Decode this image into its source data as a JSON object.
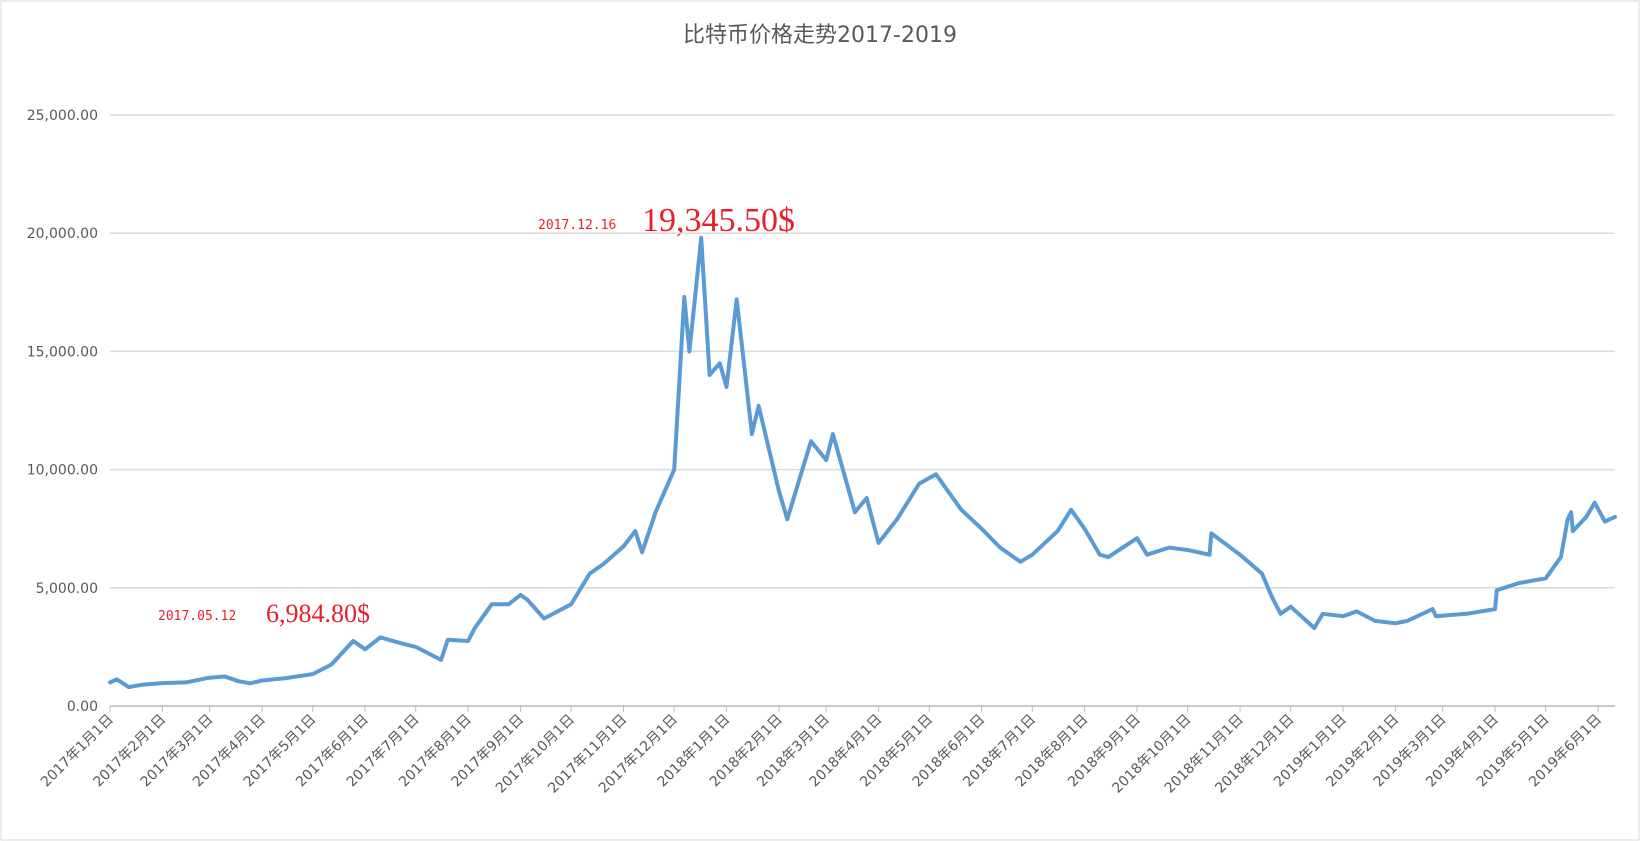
{
  "chart_data": {
    "type": "line",
    "title": "比特币价格走势2017-2019",
    "x": [
      "2017-01-01",
      "2017-01-05",
      "2017-01-12",
      "2017-01-20",
      "2017-02-01",
      "2017-02-15",
      "2017-02-28",
      "2017-03-10",
      "2017-03-18",
      "2017-03-25",
      "2017-04-01",
      "2017-04-15",
      "2017-05-01",
      "2017-05-12",
      "2017-05-25",
      "2017-06-01",
      "2017-06-10",
      "2017-06-20",
      "2017-07-01",
      "2017-07-16",
      "2017-07-20",
      "2017-08-01",
      "2017-08-05",
      "2017-08-15",
      "2017-08-25",
      "2017-09-01",
      "2017-09-05",
      "2017-09-15",
      "2017-10-01",
      "2017-10-12",
      "2017-10-20",
      "2017-11-01",
      "2017-11-08",
      "2017-11-12",
      "2017-11-20",
      "2017-12-01",
      "2017-12-07",
      "2017-12-10",
      "2017-12-17",
      "2017-12-22",
      "2017-12-28",
      "2018-01-01",
      "2018-01-07",
      "2018-01-16",
      "2018-01-20",
      "2018-02-01",
      "2018-02-06",
      "2018-02-20",
      "2018-03-01",
      "2018-03-05",
      "2018-03-18",
      "2018-03-25",
      "2018-04-01",
      "2018-04-12",
      "2018-04-25",
      "2018-05-05",
      "2018-05-20",
      "2018-06-01",
      "2018-06-12",
      "2018-06-24",
      "2018-07-01",
      "2018-07-16",
      "2018-07-24",
      "2018-08-01",
      "2018-08-10",
      "2018-08-15",
      "2018-09-01",
      "2018-09-07",
      "2018-09-20",
      "2018-10-01",
      "2018-10-14",
      "2018-10-15",
      "2018-11-01",
      "2018-11-14",
      "2018-11-20",
      "2018-11-25",
      "2018-12-01",
      "2018-12-15",
      "2018-12-20",
      "2019-01-01",
      "2019-01-09",
      "2019-01-20",
      "2019-02-01",
      "2019-02-08",
      "2019-02-23",
      "2019-02-25",
      "2019-03-15",
      "2019-04-01",
      "2019-04-02",
      "2019-04-15",
      "2019-05-01",
      "2019-05-10",
      "2019-05-14",
      "2019-05-16",
      "2019-05-17",
      "2019-05-25",
      "2019-05-30",
      "2019-06-05",
      "2019-06-11"
    ],
    "values": [
      1000,
      1130,
      800,
      900,
      970,
      1000,
      1190,
      1250,
      1050,
      960,
      1080,
      1180,
      1350,
      1750,
      2750,
      2400,
      2900,
      2700,
      2500,
      1950,
      2800,
      2750,
      3300,
      4300,
      4300,
      4700,
      4500,
      3700,
      4300,
      5600,
      6000,
      6750,
      7400,
      6500,
      8200,
      10000,
      17300,
      15000,
      19800,
      14000,
      14500,
      13500,
      17200,
      11500,
      12700,
      9100,
      7900,
      11200,
      10400,
      11500,
      8200,
      8800,
      6900,
      7900,
      9400,
      9800,
      8300,
      7500,
      6700,
      6100,
      6400,
      7400,
      8300,
      7500,
      6400,
      6300,
      7100,
      6400,
      6700,
      6600,
      6400,
      7300,
      6400,
      5600,
      4600,
      3900,
      4200,
      3300,
      3900,
      3800,
      4000,
      3600,
      3500,
      3600,
      4100,
      3800,
      3900,
      4100,
      4900,
      5200,
      5400,
      6300,
      7900,
      8200,
      7400,
      8000,
      8600,
      7800,
      8000
    ],
    "color": "#5b9bd5",
    "xlim": [
      "2017-01-01",
      "2019-06-11"
    ],
    "xticks": [
      {
        "value": "2017-01-01",
        "label": "2017年1月1日"
      },
      {
        "value": "2017-02-01",
        "label": "2017年2月1日"
      },
      {
        "value": "2017-03-01",
        "label": "2017年3月1日"
      },
      {
        "value": "2017-04-01",
        "label": "2017年4月1日"
      },
      {
        "value": "2017-05-01",
        "label": "2017年5月1日"
      },
      {
        "value": "2017-06-01",
        "label": "2017年6月1日"
      },
      {
        "value": "2017-07-01",
        "label": "2017年7月1日"
      },
      {
        "value": "2017-08-01",
        "label": "2017年8月1日"
      },
      {
        "value": "2017-09-01",
        "label": "2017年9月1日"
      },
      {
        "value": "2017-10-01",
        "label": "2017年10月1日"
      },
      {
        "value": "2017-11-01",
        "label": "2017年11月1日"
      },
      {
        "value": "2017-12-01",
        "label": "2017年12月1日"
      },
      {
        "value": "2018-01-01",
        "label": "2018年1月1日"
      },
      {
        "value": "2018-02-01",
        "label": "2018年2月1日"
      },
      {
        "value": "2018-03-01",
        "label": "2018年3月1日"
      },
      {
        "value": "2018-04-01",
        "label": "2018年4月1日"
      },
      {
        "value": "2018-05-01",
        "label": "2018年5月1日"
      },
      {
        "value": "2018-06-01",
        "label": "2018年6月1日"
      },
      {
        "value": "2018-07-01",
        "label": "2018年7月1日"
      },
      {
        "value": "2018-08-01",
        "label": "2018年8月1日"
      },
      {
        "value": "2018-09-01",
        "label": "2018年9月1日"
      },
      {
        "value": "2018-10-01",
        "label": "2018年10月1日"
      },
      {
        "value": "2018-11-01",
        "label": "2018年11月1日"
      },
      {
        "value": "2018-12-01",
        "label": "2018年12月1日"
      },
      {
        "value": "2019-01-01",
        "label": "2019年1月1日"
      },
      {
        "value": "2019-02-01",
        "label": "2019年2月1日"
      },
      {
        "value": "2019-03-01",
        "label": "2019年3月1日"
      },
      {
        "value": "2019-04-01",
        "label": "2019年4月1日"
      },
      {
        "value": "2019-05-01",
        "label": "2019年5月1日"
      },
      {
        "value": "2019-06-01",
        "label": "2019年6月1日"
      }
    ],
    "ylim": [
      0,
      25000
    ],
    "yticks": [
      {
        "value": 0,
        "label": "0.00"
      },
      {
        "value": 5000,
        "label": "5,000.00"
      },
      {
        "value": 10000,
        "label": "10,000.00"
      },
      {
        "value": 15000,
        "label": "15,000.00"
      },
      {
        "value": 20000,
        "label": "20,000.00"
      },
      {
        "value": 25000,
        "label": "25,000.00"
      }
    ],
    "grid": true,
    "annotations": [
      {
        "date": "2017.05.12",
        "text": "6,984.80$"
      },
      {
        "date": "2017.12.16",
        "text": "19,345.50$"
      }
    ]
  }
}
